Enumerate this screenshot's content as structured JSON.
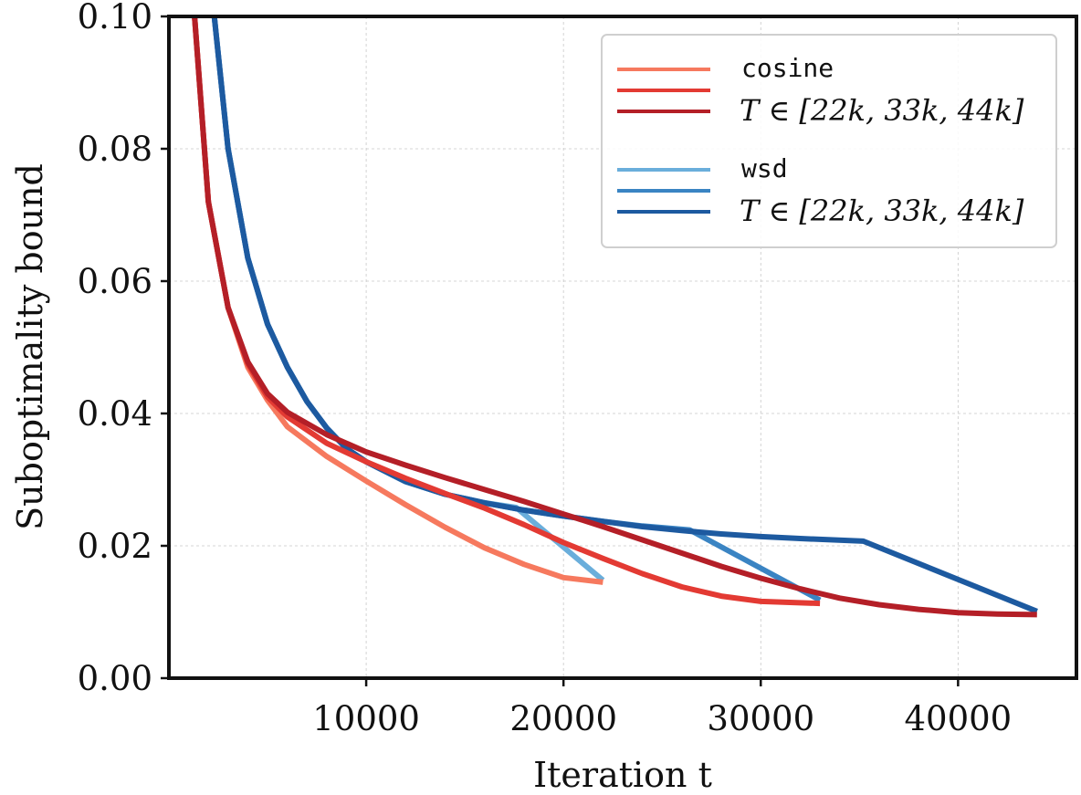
{
  "chart_data": {
    "type": "line",
    "title": "",
    "xlabel": "Iteration t",
    "ylabel": "Suboptimality bound",
    "xlim": [
      0,
      46000
    ],
    "ylim": [
      0.0,
      0.1
    ],
    "x_ticks": [
      "10000",
      "20000",
      "30000",
      "40000"
    ],
    "y_ticks": [
      "0.00",
      "0.02",
      "0.04",
      "0.06",
      "0.08",
      "0.10"
    ],
    "grid": true,
    "legend_position": "top-right",
    "legend": {
      "groups": [
        {
          "title": "cosine",
          "subtitle": "T ∈ [22k, 33k, 44k]",
          "colors": [
            "#F6795E",
            "#E33A33",
            "#B41F27"
          ]
        },
        {
          "title": "wsd",
          "subtitle": "T ∈ [22k, 33k, 44k]",
          "colors": [
            "#6AAEDB",
            "#3A84C3",
            "#1D5AA0"
          ]
        }
      ]
    },
    "series": [
      {
        "group": "cosine",
        "T": 22000,
        "color": "#F6795E",
        "x": [
          1300,
          2000,
          3000,
          4000,
          5000,
          6000,
          8000,
          10000,
          12000,
          14000,
          16000,
          18000,
          20000,
          22000
        ],
        "y": [
          0.1,
          0.072,
          0.056,
          0.047,
          0.042,
          0.038,
          0.0335,
          0.0298,
          0.0262,
          0.0228,
          0.0197,
          0.0172,
          0.0152,
          0.0145
        ]
      },
      {
        "group": "cosine",
        "T": 33000,
        "color": "#E33A33",
        "x": [
          1300,
          2000,
          3000,
          4000,
          5000,
          6000,
          8000,
          10000,
          12000,
          14000,
          16000,
          18000,
          20000,
          22000,
          24000,
          26000,
          28000,
          30000,
          33000
        ],
        "y": [
          0.1,
          0.072,
          0.056,
          0.0475,
          0.0425,
          0.0395,
          0.0355,
          0.0327,
          0.0302,
          0.0279,
          0.0257,
          0.0232,
          0.0205,
          0.0181,
          0.0158,
          0.0138,
          0.0124,
          0.0116,
          0.0113
        ]
      },
      {
        "group": "cosine",
        "T": 44000,
        "color": "#B41F27",
        "x": [
          1300,
          2000,
          3000,
          4000,
          5000,
          6000,
          8000,
          10000,
          12000,
          14000,
          16000,
          18000,
          20000,
          22000,
          24000,
          26000,
          28000,
          30000,
          32000,
          34000,
          36000,
          38000,
          40000,
          42000,
          44000
        ],
        "y": [
          0.1,
          0.072,
          0.056,
          0.0478,
          0.043,
          0.0402,
          0.0368,
          0.0342,
          0.0322,
          0.0303,
          0.0285,
          0.0267,
          0.0248,
          0.0229,
          0.0209,
          0.0189,
          0.0169,
          0.0151,
          0.0135,
          0.0121,
          0.0111,
          0.0104,
          0.0099,
          0.0097,
          0.0096
        ]
      },
      {
        "group": "wsd",
        "T": 22000,
        "color": "#6AAEDB",
        "x": [
          2300,
          3000,
          4000,
          5000,
          6000,
          7000,
          8000,
          9000,
          10000,
          12000,
          14000,
          16000,
          17600,
          22000
        ],
        "y": [
          0.1,
          0.08,
          0.0635,
          0.0535,
          0.047,
          0.0418,
          0.0378,
          0.0347,
          0.0327,
          0.0297,
          0.0278,
          0.0265,
          0.0258,
          0.0148
        ]
      },
      {
        "group": "wsd",
        "T": 33000,
        "color": "#3A84C3",
        "x": [
          2300,
          3000,
          4000,
          5000,
          6000,
          7000,
          8000,
          9000,
          10000,
          12000,
          14000,
          16000,
          18000,
          20000,
          22000,
          24000,
          26400,
          33000
        ],
        "y": [
          0.1,
          0.08,
          0.0635,
          0.0535,
          0.047,
          0.0418,
          0.0378,
          0.0347,
          0.0327,
          0.0297,
          0.0278,
          0.0265,
          0.0254,
          0.0245,
          0.0237,
          0.023,
          0.0224,
          0.0118
        ]
      },
      {
        "group": "wsd",
        "T": 44000,
        "color": "#1D5AA0",
        "x": [
          2300,
          3000,
          4000,
          5000,
          6000,
          7000,
          8000,
          9000,
          10000,
          12000,
          14000,
          16000,
          18000,
          20000,
          22000,
          24000,
          26000,
          28000,
          30000,
          32000,
          35200,
          44000
        ],
        "y": [
          0.1,
          0.08,
          0.0635,
          0.0535,
          0.047,
          0.0418,
          0.0378,
          0.0347,
          0.0327,
          0.0297,
          0.0278,
          0.0265,
          0.0254,
          0.0245,
          0.0237,
          0.0229,
          0.0223,
          0.0218,
          0.0214,
          0.0211,
          0.0207,
          0.0101
        ]
      }
    ]
  }
}
